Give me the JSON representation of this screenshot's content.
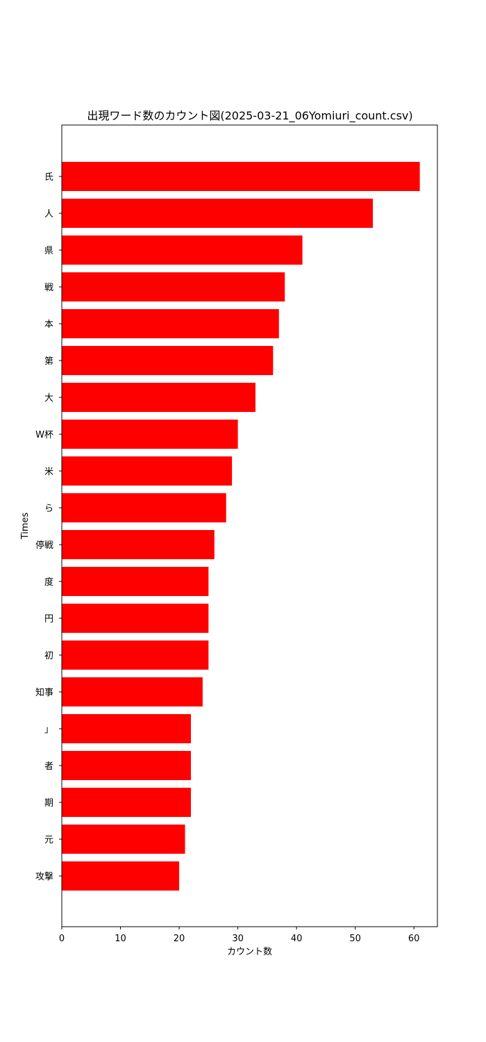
{
  "chart_data": {
    "type": "bar",
    "orientation": "horizontal",
    "title": "出現ワード数のカウント図(2025-03-21_06Yomiuri_count.csv)",
    "xlabel": "カウント数",
    "ylabel": "Times",
    "xlim": [
      0,
      64
    ],
    "xticks": [
      0,
      10,
      20,
      30,
      40,
      50,
      60
    ],
    "grid": false,
    "color": "#ff0000",
    "categories": [
      "氏",
      "人",
      "県",
      "戦",
      "本",
      "第",
      "大",
      "W杯",
      "米",
      "ら",
      "停戦",
      "度",
      "円",
      "初",
      "知事",
      "」",
      "者",
      "期",
      "元",
      "攻撃"
    ],
    "values": [
      61,
      53,
      41,
      38,
      37,
      36,
      33,
      30,
      29,
      28,
      26,
      25,
      25,
      25,
      24,
      22,
      22,
      22,
      21,
      20
    ]
  }
}
